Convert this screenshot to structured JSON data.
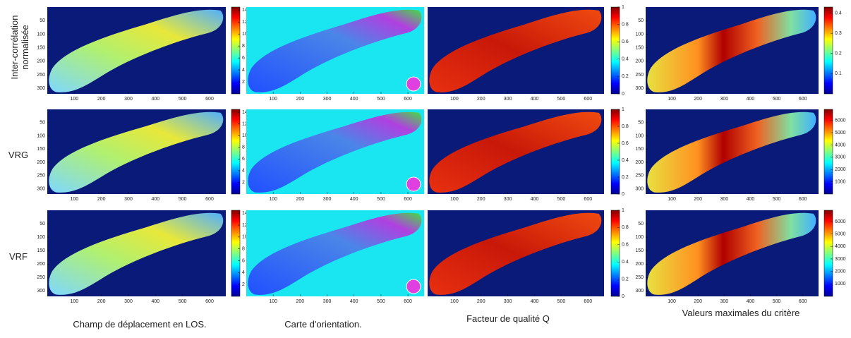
{
  "rows": [
    {
      "label": "Inter-corrélation normalisée",
      "panels": [
        {
          "xlim": [
            0,
            660
          ],
          "ylim": [
            0,
            320
          ],
          "xticks": [
            100,
            200,
            300,
            400,
            500,
            600
          ],
          "yticks": [
            50,
            100,
            150,
            200,
            250,
            300
          ],
          "clim": [
            0,
            14.5
          ],
          "cticks": [
            2,
            4,
            6,
            8,
            10,
            12,
            14
          ]
        },
        {
          "xlim": [
            0,
            660
          ],
          "ylim": [
            0,
            320
          ],
          "xticks": [
            100,
            200,
            300,
            400,
            500,
            600
          ]
        },
        {
          "xlim": [
            0,
            660
          ],
          "ylim": [
            0,
            320
          ],
          "xticks": [
            100,
            200,
            300,
            400,
            500,
            600
          ],
          "clim": [
            0,
            1
          ],
          "cticks": [
            0,
            0.2,
            0.4,
            0.6,
            0.8,
            1
          ]
        },
        {
          "xlim": [
            0,
            660
          ],
          "ylim": [
            0,
            320
          ],
          "xticks": [
            100,
            200,
            300,
            400,
            500,
            600
          ],
          "yticks": [
            50,
            100,
            150,
            200,
            250,
            300
          ],
          "clim": [
            0,
            0.43
          ],
          "cticks": [
            0.1,
            0.2,
            0.3,
            0.4
          ]
        }
      ]
    },
    {
      "label": "VRG",
      "panels": [
        {
          "xlim": [
            0,
            660
          ],
          "ylim": [
            0,
            320
          ],
          "xticks": [
            100,
            200,
            300,
            400,
            500,
            600
          ],
          "yticks": [
            50,
            100,
            150,
            200,
            250,
            300
          ],
          "clim": [
            0,
            14.5
          ],
          "cticks": [
            2,
            4,
            6,
            8,
            10,
            12,
            14
          ]
        },
        {
          "xlim": [
            0,
            660
          ],
          "ylim": [
            0,
            320
          ],
          "xticks": [
            100,
            200,
            300,
            400,
            500,
            600
          ]
        },
        {
          "xlim": [
            0,
            660
          ],
          "ylim": [
            0,
            320
          ],
          "xticks": [
            100,
            200,
            300,
            400,
            500,
            600
          ],
          "clim": [
            0,
            1
          ],
          "cticks": [
            0,
            0.2,
            0.4,
            0.6,
            0.8,
            1
          ]
        },
        {
          "xlim": [
            0,
            660
          ],
          "ylim": [
            0,
            320
          ],
          "xticks": [
            100,
            200,
            300,
            400,
            500,
            600
          ],
          "yticks": [
            50,
            100,
            150,
            200,
            250,
            300
          ],
          "clim": [
            0,
            6900
          ],
          "cticks": [
            1000,
            2000,
            3000,
            4000,
            5000,
            6000
          ]
        }
      ]
    },
    {
      "label": "VRF",
      "panels": [
        {
          "xlim": [
            0,
            660
          ],
          "ylim": [
            0,
            320
          ],
          "xticks": [
            100,
            200,
            300,
            400,
            500,
            600
          ],
          "yticks": [
            50,
            100,
            150,
            200,
            250,
            300
          ],
          "clim": [
            0,
            14.5
          ],
          "cticks": [
            2,
            4,
            6,
            8,
            10,
            12,
            14
          ]
        },
        {
          "xlim": [
            0,
            660
          ],
          "ylim": [
            0,
            320
          ],
          "xticks": [
            100,
            200,
            300,
            400,
            500,
            600
          ]
        },
        {
          "xlim": [
            0,
            660
          ],
          "ylim": [
            0,
            320
          ],
          "xticks": [
            100,
            200,
            300,
            400,
            500,
            600
          ],
          "clim": [
            0,
            1
          ],
          "cticks": [
            0,
            0.2,
            0.4,
            0.6,
            0.8,
            1
          ]
        },
        {
          "xlim": [
            0,
            660
          ],
          "ylim": [
            0,
            320
          ],
          "xticks": [
            100,
            200,
            300,
            400,
            500,
            600
          ],
          "yticks": [
            50,
            100,
            150,
            200,
            250,
            300
          ],
          "clim": [
            0,
            6900
          ],
          "cticks": [
            1000,
            2000,
            3000,
            4000,
            5000,
            6000
          ]
        }
      ]
    }
  ],
  "column_captions": [
    "Champ de déplacement en LOS.",
    "Carte d'orientation.",
    "Facteur de qualité Q",
    "Valeurs maximales du critère"
  ]
}
